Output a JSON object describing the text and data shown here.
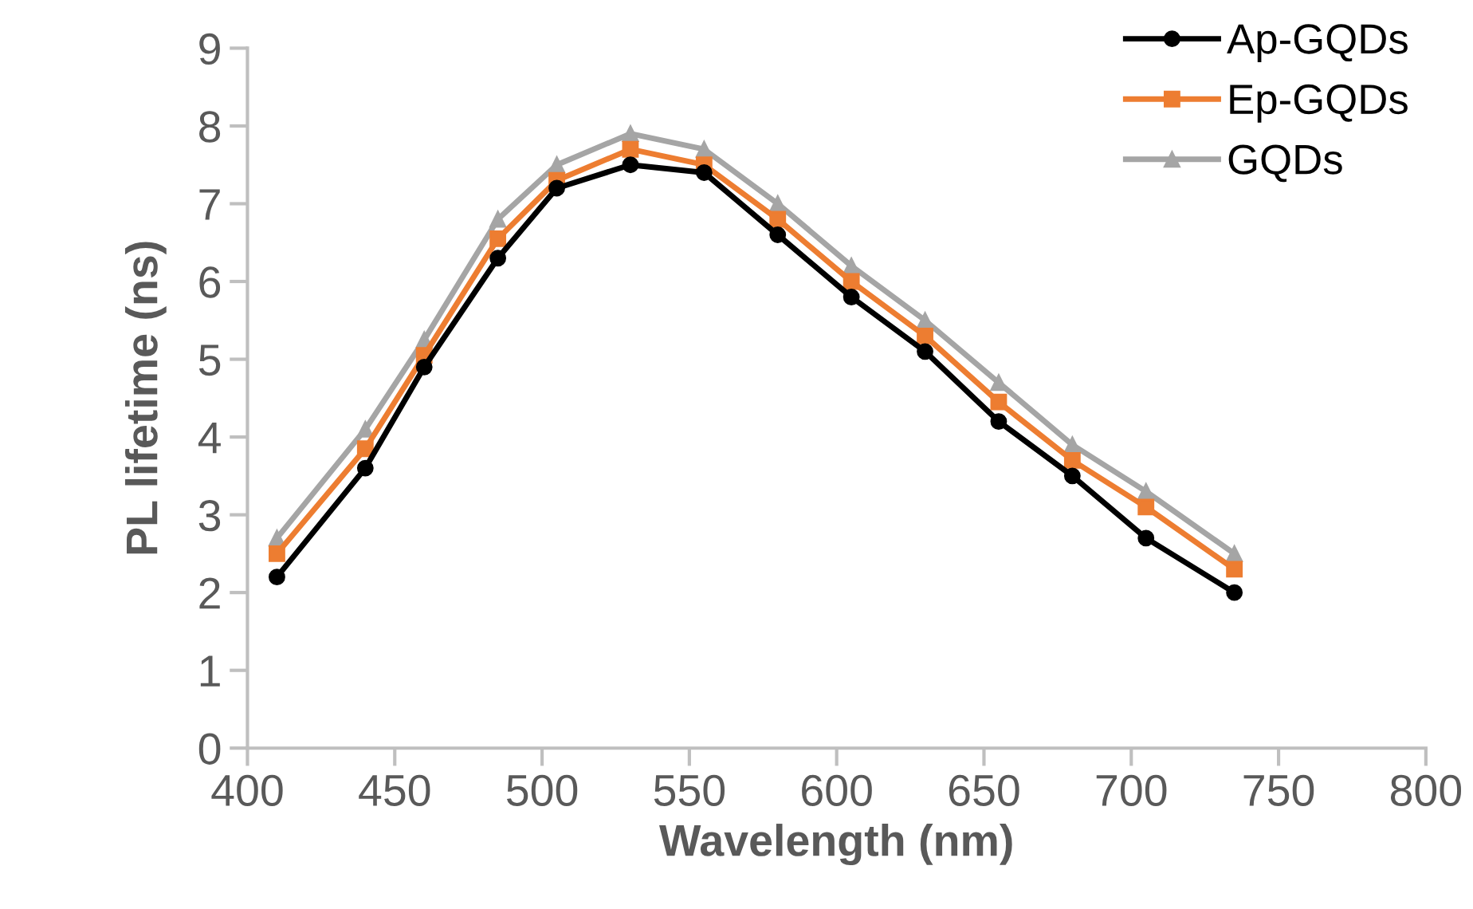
{
  "chart_data": {
    "type": "line",
    "xlabel": "Wavelength (nm)",
    "ylabel": "PL lifetime (ns)",
    "x": [
      410,
      440,
      460,
      485,
      505,
      530,
      555,
      580,
      605,
      630,
      655,
      680,
      705,
      735
    ],
    "series": [
      {
        "name": "Ap-GQDs",
        "color": "#000000",
        "marker": "circle",
        "values": [
          2.2,
          3.6,
          4.9,
          6.3,
          7.2,
          7.5,
          7.4,
          6.6,
          5.8,
          5.1,
          4.2,
          3.5,
          2.7,
          2.0
        ]
      },
      {
        "name": "Ep-GQDs",
        "color": "#ed7d31",
        "marker": "square",
        "values": [
          2.5,
          3.85,
          5.05,
          6.55,
          7.3,
          7.7,
          7.5,
          6.8,
          6.0,
          5.3,
          4.45,
          3.7,
          3.1,
          2.3
        ]
      },
      {
        "name": "GQDs",
        "color": "#a5a5a5",
        "marker": "triangle",
        "values": [
          2.7,
          4.1,
          5.25,
          6.8,
          7.5,
          7.9,
          7.7,
          7.0,
          6.2,
          5.5,
          4.7,
          3.9,
          3.3,
          2.5
        ]
      }
    ],
    "xlim": [
      400,
      800
    ],
    "xticks": [
      400,
      450,
      500,
      550,
      600,
      650,
      700,
      750,
      800
    ],
    "ylim": [
      0,
      9
    ],
    "yticks": [
      0,
      1,
      2,
      3,
      4,
      5,
      6,
      7,
      8,
      9
    ],
    "grid": false,
    "legend": "top right",
    "line_style": "solid"
  }
}
